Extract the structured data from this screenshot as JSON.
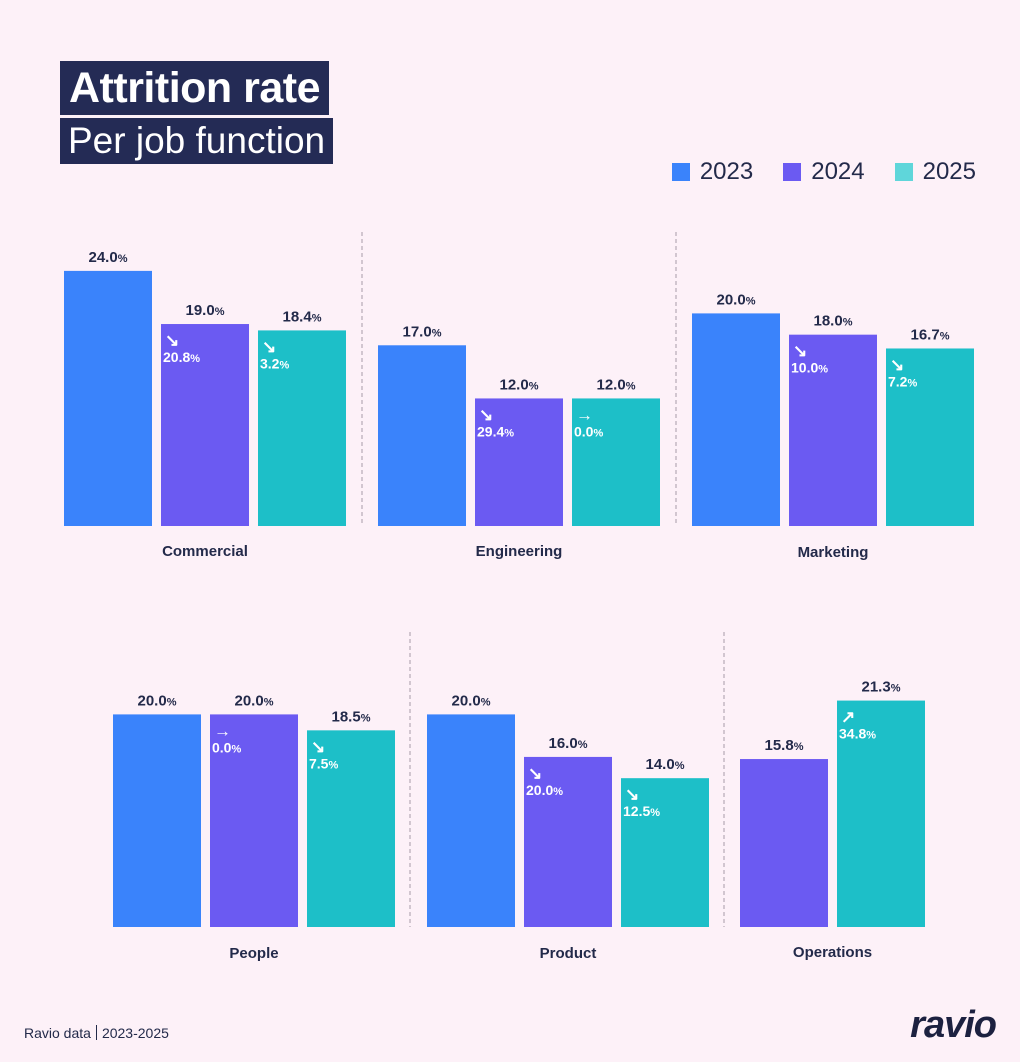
{
  "header": {
    "title": "Attrition rate",
    "subtitle": "Per job function"
  },
  "legend": [
    {
      "label": "2023",
      "color": "#3a83fb"
    },
    {
      "label": "2024",
      "color": "#6b5af2"
    },
    {
      "label": "2025",
      "color": "#1dbfc8"
    }
  ],
  "footer": {
    "source": "Ravio data",
    "years": "2023-2025",
    "logo": "ravio"
  },
  "chart_data": {
    "type": "bar",
    "title": "Attrition rate",
    "subtitle": "Per job function",
    "unit": "%",
    "series_names": [
      "2023",
      "2024",
      "2025"
    ],
    "legend_position": "top-right",
    "grid": false,
    "ylim": [
      0,
      25
    ],
    "groups": [
      {
        "category": "Commercial",
        "bars": [
          {
            "year": "2023",
            "value": 24.0,
            "label": "24.0"
          },
          {
            "year": "2024",
            "value": 19.0,
            "label": "19.0",
            "change": {
              "direction": "down",
              "arrow": "↘",
              "value": "20.8"
            }
          },
          {
            "year": "2025",
            "value": 18.4,
            "label": "18.4",
            "change": {
              "direction": "down",
              "arrow": "↘",
              "value": "3.2"
            }
          }
        ]
      },
      {
        "category": "Engineering",
        "bars": [
          {
            "year": "2023",
            "value": 17.0,
            "label": "17.0"
          },
          {
            "year": "2024",
            "value": 12.0,
            "label": "12.0",
            "change": {
              "direction": "down",
              "arrow": "↘",
              "value": "29.4"
            }
          },
          {
            "year": "2025",
            "value": 12.0,
            "label": "12.0",
            "change": {
              "direction": "flat",
              "arrow": "→",
              "value": "0.0"
            }
          }
        ]
      },
      {
        "category": "Marketing",
        "bars": [
          {
            "year": "2023",
            "value": 20.0,
            "label": "20.0"
          },
          {
            "year": "2024",
            "value": 18.0,
            "label": "18.0",
            "change": {
              "direction": "down",
              "arrow": "↘",
              "value": "10.0"
            }
          },
          {
            "year": "2025",
            "value": 16.7,
            "label": "16.7",
            "change": {
              "direction": "down",
              "arrow": "↘",
              "value": "7.2"
            }
          }
        ]
      },
      {
        "category": "People",
        "bars": [
          {
            "year": "2023",
            "value": 20.0,
            "label": "20.0"
          },
          {
            "year": "2024",
            "value": 20.0,
            "label": "20.0",
            "change": {
              "direction": "flat",
              "arrow": "→",
              "value": "0.0"
            }
          },
          {
            "year": "2025",
            "value": 18.5,
            "label": "18.5",
            "change": {
              "direction": "down",
              "arrow": "↘",
              "value": "7.5"
            }
          }
        ]
      },
      {
        "category": "Product",
        "bars": [
          {
            "year": "2023",
            "value": 20.0,
            "label": "20.0"
          },
          {
            "year": "2024",
            "value": 16.0,
            "label": "16.0",
            "change": {
              "direction": "down",
              "arrow": "↘",
              "value": "20.0"
            }
          },
          {
            "year": "2025",
            "value": 14.0,
            "label": "14.0",
            "change": {
              "direction": "down",
              "arrow": "↘",
              "value": "12.5"
            }
          }
        ]
      },
      {
        "category": "Operations",
        "bars": [
          {
            "year": "2024",
            "value": 15.8,
            "label": "15.8"
          },
          {
            "year": "2025",
            "value": 21.3,
            "label": "21.3",
            "change": {
              "direction": "up",
              "arrow": "↗",
              "value": "34.8"
            }
          }
        ]
      }
    ]
  }
}
